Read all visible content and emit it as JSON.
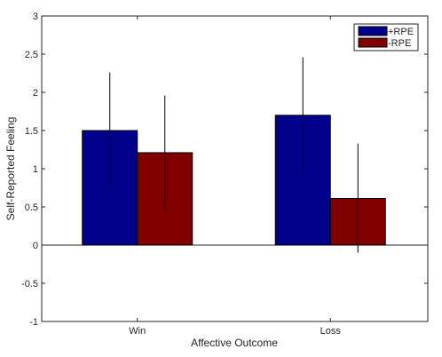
{
  "chart_data": {
    "type": "bar",
    "title": "",
    "xlabel": "Affective Outcome",
    "ylabel": "Self-Reported Feeling",
    "categories": [
      "Win",
      "Loss"
    ],
    "ylim": [
      -1,
      3
    ],
    "yticks": [
      -1,
      -0.5,
      0,
      0.5,
      1,
      1.5,
      2,
      2.5,
      3
    ],
    "ytick_labels": [
      "-1",
      "-0.5",
      "0",
      "0.5",
      "1",
      "1.5",
      "2",
      "2.5",
      "3"
    ],
    "legend_position": "top-right",
    "grid": false,
    "series": [
      {
        "name": "+RPE",
        "color": "#00008b",
        "values": [
          1.5,
          1.7
        ],
        "error_low": [
          0.74,
          0.94
        ],
        "error_high": [
          2.26,
          2.46
        ]
      },
      {
        "name": "-RPE",
        "color": "#800000",
        "values": [
          1.21,
          0.61
        ],
        "error_low": [
          0.45,
          -0.1
        ],
        "error_high": [
          1.96,
          1.33
        ]
      }
    ]
  }
}
